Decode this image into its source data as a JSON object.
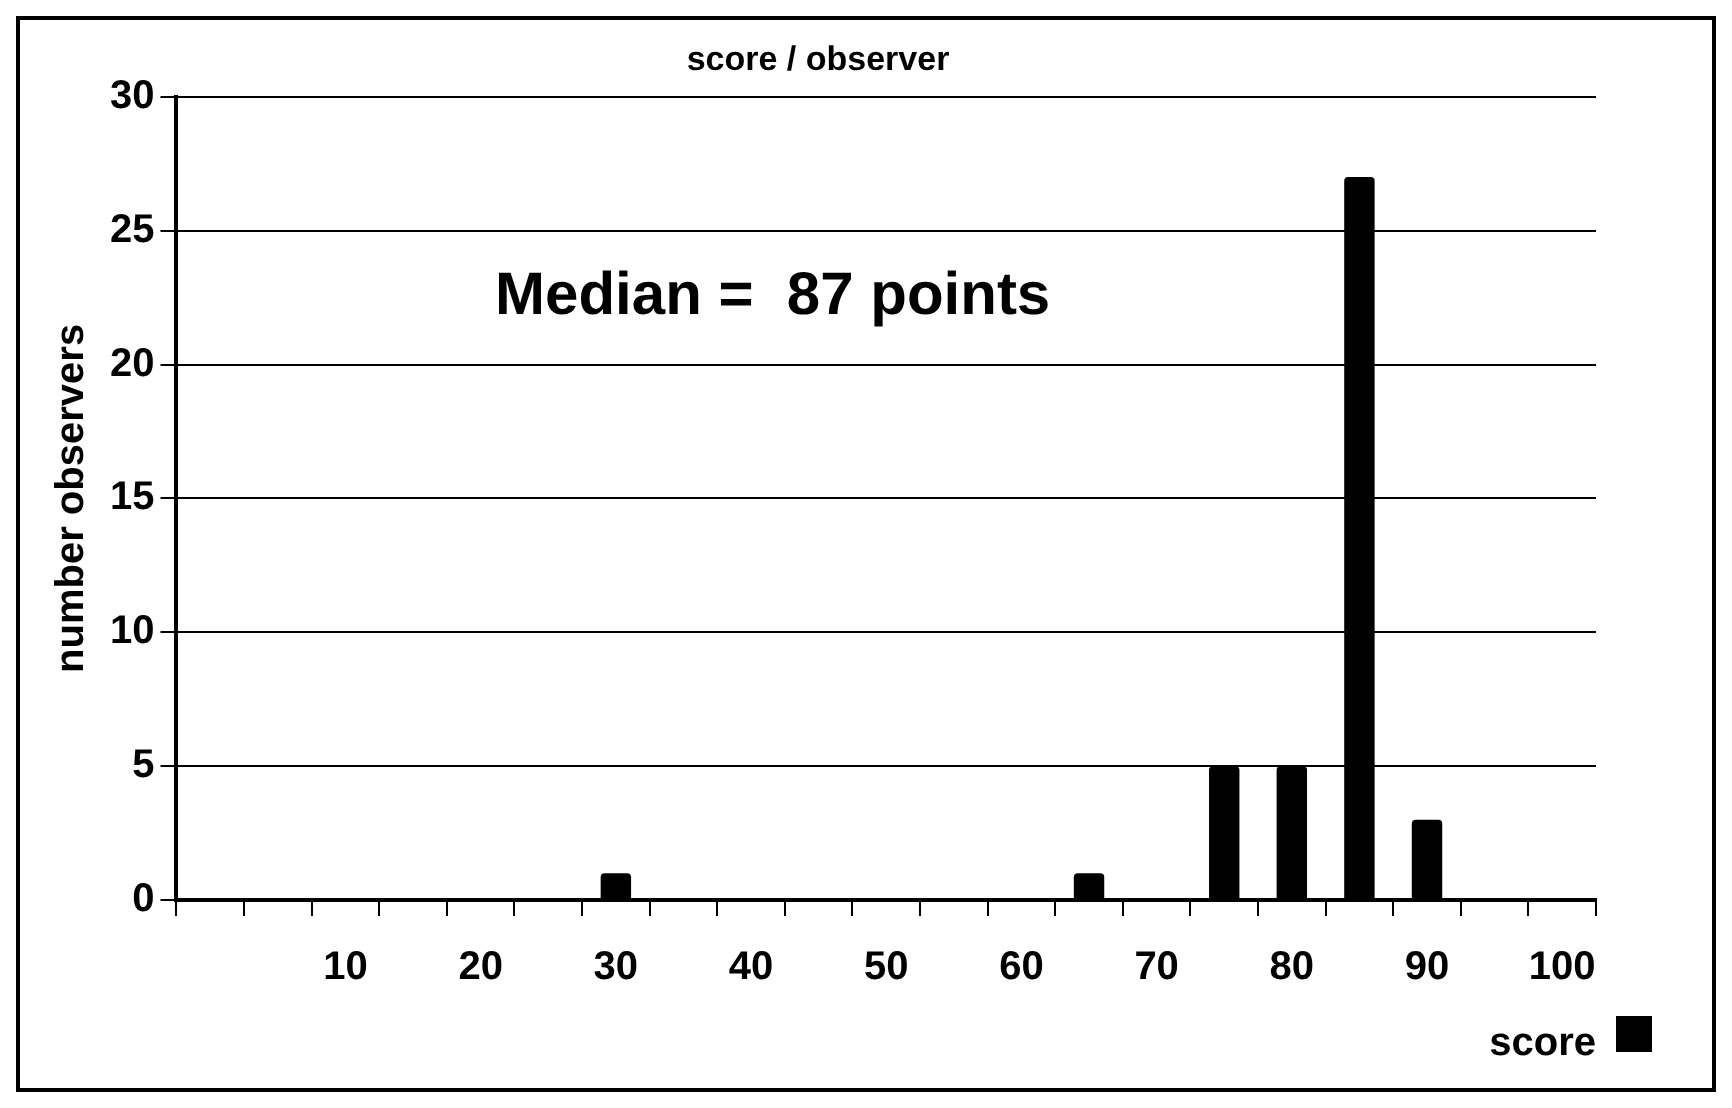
{
  "chart_data": {
    "type": "bar",
    "title": "score / observer",
    "xlabel": "score",
    "ylabel": "number observers",
    "categories": [
      null,
      null,
      "10",
      null,
      "20",
      null,
      "30",
      null,
      "40",
      null,
      "50",
      null,
      "60",
      null,
      "70",
      null,
      "80",
      null,
      "90",
      null,
      "100"
    ],
    "series": [
      {
        "color": "#000000",
        "values": [
          0,
          0,
          0,
          0,
          0,
          0,
          1,
          0,
          0,
          0,
          0,
          0,
          0,
          1,
          0,
          5,
          5,
          27,
          3,
          0,
          0
        ]
      }
    ],
    "ylim": [
      0,
      30
    ],
    "yticks": [
      0,
      5,
      10,
      15,
      20,
      25,
      30
    ],
    "grid": "y",
    "annotations": [
      "Median =  87 points"
    ]
  }
}
